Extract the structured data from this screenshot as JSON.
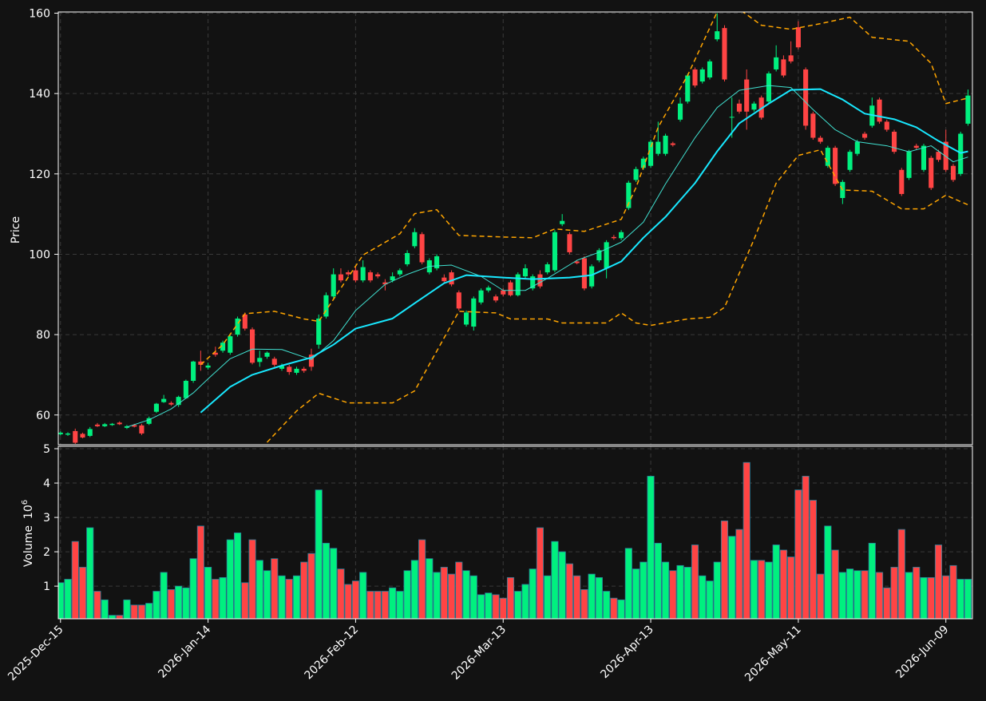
{
  "chart_data": {
    "type": "candlestick",
    "categories": [
      "2025-Dec-15",
      null,
      null,
      null,
      null,
      null,
      null,
      null,
      null,
      null,
      null,
      null,
      null,
      null,
      null,
      null,
      null,
      null,
      null,
      null,
      "2026-Jan-14",
      null,
      null,
      null,
      null,
      null,
      null,
      null,
      null,
      null,
      null,
      null,
      null,
      null,
      null,
      null,
      null,
      null,
      null,
      null,
      "2026-Feb-12",
      null,
      null,
      null,
      null,
      null,
      null,
      null,
      null,
      null,
      null,
      null,
      null,
      null,
      null,
      null,
      null,
      null,
      null,
      null,
      "2026-Mar-13",
      null,
      null,
      null,
      null,
      null,
      null,
      null,
      null,
      null,
      null,
      null,
      null,
      null,
      null,
      null,
      null,
      null,
      null,
      null,
      "2026-Apr-13",
      null,
      null,
      null,
      null,
      null,
      null,
      null,
      null,
      null,
      null,
      null,
      null,
      null,
      null,
      null,
      null,
      null,
      null,
      null,
      "2026-May-11",
      null,
      null,
      null,
      null,
      null,
      null,
      null,
      null,
      null,
      null,
      null,
      null,
      null,
      null,
      null,
      null,
      null,
      null,
      null,
      "2026-Jun-09",
      null,
      null,
      null
    ],
    "xlim": [
      -0.3,
      123.6
    ],
    "open": [
      55.2,
      55.1,
      56.0,
      55.3,
      54.8,
      57.6,
      57.2,
      57.5,
      58.1,
      56.8,
      57.5,
      57.4,
      57.8,
      60.8,
      63.2,
      63.0,
      62.5,
      64.2,
      68.5,
      73.3,
      71.8,
      75.5,
      76.0,
      75.5,
      80.0,
      85.0,
      81.3,
      73.2,
      74.5,
      74.0,
      71.5,
      72.0,
      70.5,
      71.5,
      75.0,
      77.5,
      84.5,
      89.5,
      95.0,
      95.5,
      96.0,
      93.5,
      95.5,
      95.0,
      93.0,
      93.5,
      95.0,
      97.5,
      102.0,
      105.0,
      95.5,
      96.5,
      94.2,
      95.5,
      90.5,
      82.5,
      82.0,
      88.0,
      91.0,
      89.5,
      91.0,
      93.0,
      89.8,
      94.5,
      91.5,
      95.0,
      95.5,
      96.0,
      107.5,
      105.0,
      98.2,
      99.0,
      92.0,
      98.5,
      96.5,
      104.3,
      104.0,
      111.5,
      118.5,
      121.5,
      122.0,
      125.0,
      125.0,
      127.6,
      133.5,
      138.0,
      146.0,
      143.0,
      144.0,
      153.5,
      156.3,
      134.0,
      137.5,
      143.5,
      136.0,
      139.0,
      138.0,
      146.0,
      148.5,
      149.5,
      156.5,
      146.0,
      135.0,
      129.0,
      122.0,
      126.5,
      114.0,
      121.0,
      125.0,
      130.0,
      132.0,
      138.5,
      133.0,
      130.5,
      121.0,
      119.0,
      127.0,
      121.0,
      124.0,
      125.5,
      128.0,
      122.0,
      120.0,
      132.5
    ],
    "high": [
      55.9,
      55.7,
      56.6,
      55.6,
      57.0,
      58.0,
      58.0,
      58.0,
      58.4,
      57.5,
      57.8,
      57.8,
      59.6,
      63.0,
      65.0,
      63.4,
      64.8,
      68.8,
      73.5,
      76.0,
      73.0,
      77.0,
      78.5,
      80.0,
      84.5,
      85.5,
      81.8,
      76.0,
      75.8,
      74.5,
      72.8,
      72.5,
      72.0,
      72.0,
      76.5,
      85.0,
      90.5,
      96.5,
      96.5,
      96.0,
      97.0,
      98.5,
      96.0,
      95.5,
      93.8,
      95.5,
      96.5,
      101.0,
      106.5,
      105.5,
      99.0,
      100.0,
      95.0,
      96.0,
      91.0,
      86.0,
      89.5,
      91.5,
      92.2,
      90.0,
      91.5,
      93.5,
      95.5,
      97.5,
      95.0,
      96.0,
      98.0,
      106.0,
      110.0,
      105.5,
      98.6,
      99.5,
      97.5,
      101.5,
      103.5,
      104.8,
      106.0,
      118.3,
      121.8,
      124.3,
      128.5,
      133.0,
      130.0,
      128.0,
      139.0,
      145.0,
      146.5,
      146.5,
      148.5,
      160.0,
      157.0,
      139.0,
      138.5,
      146.0,
      138.0,
      139.5,
      145.5,
      152.0,
      149.5,
      153.0,
      158.0,
      146.5,
      135.5,
      129.5,
      127.0,
      127.0,
      118.5,
      126.0,
      128.5,
      130.5,
      139.0,
      139.0,
      133.5,
      131.0,
      121.5,
      126.0,
      127.5,
      127.5,
      124.5,
      126.0,
      131.0,
      122.5,
      130.5,
      141.0
    ],
    "low": [
      54.9,
      54.8,
      52.8,
      54.2,
      54.5,
      57.0,
      57.0,
      57.3,
      57.5,
      56.5,
      56.9,
      55.0,
      57.5,
      60.5,
      63.0,
      62.3,
      62.0,
      64.0,
      68.0,
      71.0,
      71.3,
      74.5,
      75.5,
      75.0,
      79.5,
      81.0,
      72.6,
      72.0,
      74.0,
      72.0,
      71.0,
      70.0,
      70.0,
      70.5,
      71.0,
      76.5,
      84.0,
      89.0,
      93.0,
      94.5,
      93.0,
      93.0,
      93.0,
      94.0,
      91.0,
      93.0,
      94.5,
      97.0,
      101.5,
      97.5,
      95.0,
      96.0,
      93.0,
      92.0,
      86.0,
      82.0,
      81.0,
      87.5,
      90.5,
      88.0,
      89.5,
      89.5,
      89.5,
      94.0,
      91.0,
      91.5,
      95.0,
      95.5,
      107.0,
      100.0,
      97.5,
      91.0,
      91.5,
      98.0,
      94.0,
      103.6,
      103.5,
      111.0,
      118.0,
      121.0,
      121.5,
      124.5,
      124.5,
      126.8,
      133.0,
      137.5,
      141.5,
      142.5,
      143.5,
      153.0,
      143.0,
      129.0,
      135.0,
      131.0,
      135.5,
      133.5,
      137.5,
      145.5,
      144.0,
      147.5,
      151.0,
      131.0,
      128.5,
      127.5,
      121.5,
      117.0,
      112.5,
      120.5,
      124.5,
      128.5,
      131.5,
      132.5,
      130.5,
      125.0,
      114.5,
      118.5,
      126.0,
      120.5,
      116.0,
      123.0,
      120.5,
      118.0,
      119.5,
      132.0
    ],
    "close": [
      55.6,
      55.4,
      53.1,
      54.4,
      56.5,
      57.2,
      57.7,
      57.8,
      57.7,
      57.2,
      57.1,
      55.4,
      59.2,
      62.8,
      64.0,
      62.6,
      64.5,
      68.5,
      73.3,
      72.5,
      72.3,
      75.0,
      78.0,
      79.6,
      84.0,
      81.5,
      73.0,
      74.2,
      75.5,
      72.5,
      72.2,
      70.7,
      71.5,
      71.0,
      72.0,
      84.0,
      89.8,
      95.0,
      93.5,
      95.0,
      93.5,
      96.8,
      93.5,
      94.5,
      92.5,
      94.5,
      96.0,
      100.3,
      105.5,
      98.0,
      98.5,
      99.5,
      93.3,
      92.5,
      86.5,
      85.5,
      89.0,
      91.0,
      91.7,
      88.5,
      90.0,
      89.8,
      95.0,
      96.5,
      94.5,
      92.0,
      97.5,
      105.5,
      108.3,
      100.5,
      97.8,
      91.5,
      97.0,
      101.0,
      103.0,
      104.0,
      105.5,
      117.8,
      121.2,
      123.8,
      128.0,
      128.0,
      129.5,
      127.2,
      137.5,
      144.5,
      142.0,
      146.0,
      148.0,
      155.5,
      143.5,
      134.2,
      135.5,
      135.5,
      137.5,
      134.0,
      145.0,
      149.0,
      144.5,
      148.0,
      151.5,
      132.0,
      129.0,
      128.0,
      126.5,
      117.5,
      118.0,
      125.5,
      128.0,
      129.0,
      137.0,
      133.0,
      131.0,
      125.5,
      115.0,
      125.5,
      126.5,
      127.0,
      116.5,
      123.5,
      121.0,
      118.5,
      130.0,
      139.5
    ],
    "up_color": "#00f07f",
    "down_color": "#ff4444",
    "ylabel": "Price",
    "ylim": [
      52.6,
      160.3
    ],
    "yticks": [
      60,
      80,
      100,
      120,
      140,
      160
    ],
    "grid": true,
    "lines": [
      {
        "color": "#40e0d0",
        "width": 1,
        "linestyle": "solid",
        "x": [
          9,
          12,
          15,
          18,
          20,
          23,
          26,
          30,
          34,
          37,
          40,
          44,
          47,
          50,
          53,
          57,
          60,
          63,
          66,
          70,
          73,
          76,
          79,
          82,
          86,
          89,
          92,
          96,
          99,
          102,
          105,
          108,
          112,
          115,
          118,
          121,
          123
        ],
        "values": [
          57.0,
          58.8,
          61.5,
          65.5,
          69.0,
          74.0,
          76.4,
          76.3,
          73.8,
          78.5,
          86.0,
          92.5,
          95.0,
          97.0,
          97.3,
          94.5,
          91.0,
          91.0,
          94.0,
          98.5,
          100.5,
          103.0,
          108.0,
          117.5,
          129.0,
          136.5,
          140.8,
          142.0,
          141.5,
          136.0,
          131.0,
          128.0,
          127.0,
          125.5,
          127.0,
          123.0,
          124.2
        ]
      },
      {
        "color": "#18e8ff",
        "width": 2,
        "linestyle": "solid",
        "x": [
          19,
          23,
          26,
          30,
          34,
          37,
          40,
          45,
          48,
          52,
          55,
          60,
          64,
          69,
          72,
          76,
          79,
          82,
          86,
          89,
          92,
          96,
          99,
          103,
          106,
          109,
          113,
          116,
          119,
          122,
          123
        ],
        "values": [
          60.6,
          67.0,
          70.0,
          72.3,
          74.3,
          77.5,
          81.5,
          84.0,
          87.8,
          92.8,
          94.8,
          94.2,
          93.8,
          94.2,
          94.8,
          98.2,
          104.1,
          109.3,
          117.7,
          125.6,
          132.6,
          137.5,
          140.9,
          141.1,
          138.5,
          135.0,
          133.6,
          131.6,
          128.2,
          125.2,
          125.6
        ]
      },
      {
        "color": "#ffa500",
        "width": 1.5,
        "linestyle": "dashed",
        "x": [
          19,
          22,
          25,
          29,
          33,
          35,
          37,
          41,
          46,
          48,
          51,
          54,
          60,
          64,
          67,
          71,
          76,
          78,
          81,
          85,
          89,
          92,
          95,
          99,
          103,
          107,
          110,
          115,
          118,
          120,
          123
        ],
        "values": [
          72.5,
          77.5,
          85.2,
          85.8,
          83.9,
          83.3,
          88.8,
          99.8,
          105.1,
          110.1,
          111.1,
          104.7,
          104.3,
          104.1,
          106.3,
          105.7,
          108.7,
          116.6,
          131.6,
          144.5,
          160.3,
          161.0,
          157.0,
          156.0,
          157.4,
          159.0,
          154.0,
          153.0,
          147.5,
          137.5,
          138.9
        ]
      },
      {
        "color": "#ffa500",
        "width": 1.5,
        "linestyle": "dashed",
        "x": [
          28,
          32,
          35,
          39,
          45,
          48,
          51,
          54,
          59,
          61,
          66,
          68,
          74,
          76,
          78,
          80,
          85,
          88,
          90,
          94,
          97,
          100,
          103,
          106,
          110,
          114,
          117,
          120,
          123
        ],
        "values": [
          53.2,
          61.0,
          65.4,
          63.0,
          63.0,
          66.0,
          75.9,
          85.8,
          85.4,
          83.9,
          83.9,
          82.9,
          82.9,
          85.4,
          82.9,
          82.3,
          83.9,
          84.3,
          86.8,
          103.7,
          117.7,
          124.6,
          126.0,
          116.0,
          115.7,
          111.3,
          111.3,
          114.7,
          112.3
        ]
      }
    ],
    "volume": {
      "ylabel": "Volume",
      "multiplier": "10",
      "multiplier_exponent": "6",
      "ylim": [
        0.05,
        5.07
      ],
      "yticks": [
        1,
        2,
        3,
        4,
        5
      ],
      "values": [
        1.1,
        1.2,
        2.3,
        1.55,
        2.7,
        0.85,
        0.6,
        0.15,
        0.15,
        0.6,
        0.45,
        0.45,
        0.5,
        0.85,
        1.4,
        0.9,
        1.0,
        0.95,
        1.8,
        2.75,
        1.55,
        1.2,
        1.25,
        2.35,
        2.55,
        1.1,
        2.35,
        1.75,
        1.45,
        1.8,
        1.3,
        1.2,
        1.3,
        1.7,
        1.95,
        3.8,
        2.25,
        2.1,
        1.5,
        1.05,
        1.15,
        1.4,
        0.85,
        0.85,
        0.85,
        0.95,
        0.85,
        1.45,
        1.75,
        2.35,
        1.8,
        1.4,
        1.55,
        1.35,
        1.7,
        1.45,
        1.3,
        0.75,
        0.8,
        0.75,
        0.65,
        1.25,
        0.85,
        1.05,
        1.5,
        2.7,
        1.3,
        2.3,
        2.0,
        1.65,
        1.3,
        0.9,
        1.35,
        1.25,
        0.85,
        0.65,
        0.6,
        2.1,
        1.5,
        1.7,
        4.2,
        2.25,
        1.7,
        1.45,
        1.6,
        1.55,
        2.2,
        1.3,
        1.15,
        1.7,
        2.9,
        2.45,
        2.65,
        4.6,
        1.75,
        1.75,
        1.7,
        2.2,
        2.05,
        1.85,
        3.8,
        4.2,
        3.5,
        1.35,
        2.75,
        2.05,
        1.4,
        1.5,
        1.45,
        1.45,
        2.25,
        1.4,
        0.95,
        1.55,
        2.65,
        1.4,
        1.55,
        1.25,
        1.25,
        2.2,
        1.3,
        1.6,
        1.2,
        1.2
      ]
    }
  }
}
